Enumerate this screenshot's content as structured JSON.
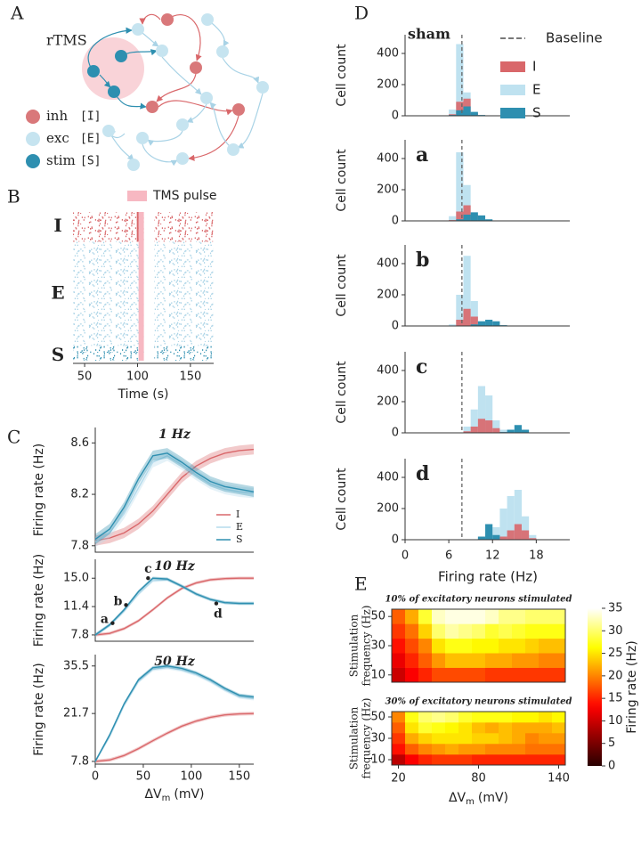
{
  "panel_labels": [
    "A",
    "B",
    "C",
    "D",
    "E"
  ],
  "network": {
    "title": "rTMS",
    "legend": [
      {
        "label": "inh",
        "code": "[I]",
        "color": "#d9787a"
      },
      {
        "label": "exc",
        "code": "[E]",
        "color": "#c6e4f0"
      },
      {
        "label": "stim",
        "code": "[S]",
        "color": "#2e8fb0"
      }
    ]
  },
  "chart_data": [
    {
      "type": "raster",
      "rows": [
        "I",
        "E",
        "S"
      ],
      "colors": [
        "#d9676a",
        "#a9d3e6",
        "#2e8fb0"
      ],
      "xlim": [
        39,
        172
      ],
      "xticks": [
        50,
        100,
        150
      ],
      "x_label": "Time (s)",
      "pulse": [
        101,
        106
      ],
      "pulse_label": "TMS pulse",
      "pulse_color": "#f7b8c2",
      "gap": [
        106,
        116
      ]
    },
    {
      "type": "line",
      "title": "1 Hz",
      "y_label": "Firing rate (Hz)",
      "legend": "lower right",
      "x": [
        0,
        15,
        30,
        45,
        60,
        75,
        90,
        105,
        120,
        135,
        150,
        165
      ],
      "xlim": [
        0,
        165
      ],
      "ylim": [
        7.75,
        8.72
      ],
      "yticks": [
        7.8,
        8.2,
        8.6
      ],
      "series": [
        {
          "name": "I",
          "color": "#d9676a",
          "error": 0.04,
          "values": [
            7.84,
            7.86,
            7.9,
            7.97,
            8.07,
            8.2,
            8.33,
            8.42,
            8.48,
            8.52,
            8.54,
            8.55
          ]
        },
        {
          "name": "E",
          "color": "#b5dbec",
          "error": 0.04,
          "values": [
            7.83,
            7.9,
            8.05,
            8.25,
            8.45,
            8.5,
            8.43,
            8.35,
            8.28,
            8.24,
            8.22,
            8.21
          ]
        },
        {
          "name": "S",
          "color": "#2e8fb0",
          "error": 0.04,
          "values": [
            7.85,
            7.93,
            8.1,
            8.32,
            8.5,
            8.52,
            8.45,
            8.37,
            8.3,
            8.26,
            8.24,
            8.22
          ]
        }
      ]
    },
    {
      "type": "line",
      "title": "10 Hz",
      "y_label": "Firing rate (Hz)",
      "x": [
        0,
        15,
        30,
        45,
        60,
        75,
        90,
        105,
        120,
        135,
        150,
        165
      ],
      "xlim": [
        0,
        165
      ],
      "ylim": [
        7.0,
        17.4
      ],
      "yticks": [
        7.8,
        11.4,
        {
          "value": 15,
          "label": "15.0"
        }
      ],
      "series": [
        {
          "name": "I",
          "color": "#d9676a",
          "error": 0.2,
          "values": [
            7.8,
            8.0,
            8.6,
            9.6,
            11.0,
            12.5,
            13.7,
            14.4,
            14.8,
            14.95,
            15.0,
            15.0
          ]
        },
        {
          "name": "E",
          "color": "#b5dbec",
          "error": 0.2,
          "values": [
            7.8,
            9.0,
            10.8,
            13.0,
            14.7,
            14.8,
            14.0,
            13.0,
            12.3,
            11.9,
            11.8,
            11.8
          ]
        },
        {
          "name": "S",
          "color": "#2e8fb0",
          "error": 0.2,
          "values": [
            7.8,
            9.1,
            11.0,
            13.3,
            15.0,
            14.9,
            14.0,
            13.0,
            12.3,
            11.9,
            11.8,
            11.8
          ]
        }
      ],
      "points": [
        {
          "label": "a",
          "x": 18,
          "y": 9.3
        },
        {
          "label": "b",
          "x": 32,
          "y": 11.6
        },
        {
          "label": "c",
          "x": 55,
          "y": 15.0
        },
        {
          "label": "d",
          "x": 126,
          "y": 11.8
        }
      ]
    },
    {
      "type": "line",
      "title": "50 Hz",
      "y_label": "Firing rate (Hz)",
      "x": [
        0,
        15,
        30,
        45,
        60,
        75,
        90,
        105,
        120,
        135,
        150,
        165
      ],
      "xlim": [
        0,
        165
      ],
      "xticks": [
        0,
        50,
        100,
        150
      ],
      "x_label": {
        "main": "ΔV",
        "sub": "m",
        "unit": "(mV)"
      },
      "ylim": [
        7,
        38.8
      ],
      "yticks": [
        7.8,
        21.7,
        35.5
      ],
      "series": [
        {
          "name": "I",
          "color": "#d9676a",
          "error": 0.5,
          "values": [
            7.8,
            8.2,
            9.5,
            11.5,
            13.8,
            16.0,
            18.0,
            19.5,
            20.6,
            21.3,
            21.6,
            21.7
          ]
        },
        {
          "name": "E",
          "color": "#b5dbec",
          "error": 0.5,
          "values": [
            7.8,
            15,
            24,
            31,
            34.5,
            35.0,
            34.3,
            33.0,
            31.0,
            28.5,
            26.5,
            26.0
          ]
        },
        {
          "name": "S",
          "color": "#2e8fb0",
          "error": 0.5,
          "values": [
            7.8,
            15.5,
            24.5,
            31.5,
            35.0,
            35.5,
            34.8,
            33.5,
            31.5,
            29,
            27,
            26.5
          ]
        }
      ]
    },
    {
      "type": "histogram",
      "label": "sham",
      "y_label": "Cell count",
      "legend": "upper right",
      "baseline_label": "Baseline",
      "baseline": 7.8,
      "xlim": [
        0,
        22.6
      ],
      "ylim": [
        0,
        520
      ],
      "yticks": [
        0,
        200,
        400
      ],
      "bins": [
        3,
        4,
        5,
        6,
        7,
        8,
        9,
        10,
        11,
        12,
        13,
        14,
        15,
        16,
        17,
        18,
        19
      ],
      "series": [
        {
          "name": "I",
          "color": "#d9676a",
          "values": [
            0,
            0,
            0,
            10,
            90,
            110,
            20,
            0,
            0,
            0,
            0,
            0,
            0,
            0,
            0,
            0
          ]
        },
        {
          "name": "E",
          "color": "#bfe2f0",
          "values": [
            0,
            0,
            0,
            40,
            460,
            150,
            10,
            0,
            0,
            0,
            0,
            0,
            0,
            0,
            0,
            0
          ]
        },
        {
          "name": "S",
          "color": "#2e8fb0",
          "values": [
            0,
            0,
            0,
            5,
            35,
            60,
            25,
            5,
            0,
            0,
            0,
            0,
            0,
            0,
            0,
            0
          ]
        }
      ]
    },
    {
      "type": "histogram",
      "label": "a",
      "y_label": "Cell count",
      "baseline": 7.8,
      "xlim": [
        0,
        22.6
      ],
      "ylim": [
        0,
        520
      ],
      "yticks": [
        0,
        200,
        400
      ],
      "bins": [
        3,
        4,
        5,
        6,
        7,
        8,
        9,
        10,
        11,
        12,
        13,
        14,
        15,
        16,
        17,
        18,
        19
      ],
      "series": [
        {
          "name": "I",
          "color": "#d9676a",
          "values": [
            0,
            0,
            0,
            5,
            60,
            100,
            40,
            5,
            0,
            0,
            0,
            0,
            0,
            0,
            0,
            0
          ]
        },
        {
          "name": "E",
          "color": "#bfe2f0",
          "values": [
            0,
            0,
            0,
            30,
            440,
            230,
            40,
            5,
            0,
            0,
            0,
            0,
            0,
            0,
            0,
            0
          ]
        },
        {
          "name": "S",
          "color": "#2e8fb0",
          "values": [
            0,
            0,
            0,
            0,
            10,
            40,
            55,
            35,
            10,
            0,
            0,
            0,
            0,
            0,
            0,
            0
          ]
        }
      ]
    },
    {
      "type": "histogram",
      "label": "b",
      "y_label": "Cell count",
      "baseline": 7.8,
      "xlim": [
        0,
        22.6
      ],
      "ylim": [
        0,
        520
      ],
      "yticks": [
        0,
        200,
        400
      ],
      "bins": [
        3,
        4,
        5,
        6,
        7,
        8,
        9,
        10,
        11,
        12,
        13,
        14,
        15,
        16,
        17,
        18,
        19
      ],
      "series": [
        {
          "name": "I",
          "color": "#d9676a",
          "values": [
            0,
            0,
            0,
            0,
            40,
            110,
            60,
            10,
            0,
            0,
            0,
            0,
            0,
            0,
            0,
            0
          ]
        },
        {
          "name": "E",
          "color": "#bfe2f0",
          "values": [
            0,
            0,
            0,
            10,
            200,
            450,
            160,
            30,
            5,
            0,
            0,
            0,
            0,
            0,
            0,
            0
          ]
        },
        {
          "name": "S",
          "color": "#2e8fb0",
          "values": [
            0,
            0,
            0,
            0,
            0,
            0,
            10,
            30,
            40,
            30,
            5,
            0,
            0,
            0,
            0,
            0
          ]
        }
      ]
    },
    {
      "type": "histogram",
      "label": "c",
      "y_label": "Cell count",
      "baseline": 7.8,
      "xlim": [
        0,
        22.6
      ],
      "ylim": [
        0,
        520
      ],
      "yticks": [
        0,
        200,
        400
      ],
      "bins": [
        3,
        4,
        5,
        6,
        7,
        8,
        9,
        10,
        11,
        12,
        13,
        14,
        15,
        16,
        17,
        18,
        19
      ],
      "series": [
        {
          "name": "I",
          "color": "#d9676a",
          "values": [
            0,
            0,
            0,
            0,
            0,
            10,
            40,
            90,
            80,
            30,
            5,
            0,
            0,
            0,
            0,
            0
          ]
        },
        {
          "name": "E",
          "color": "#bfe2f0",
          "values": [
            0,
            0,
            0,
            0,
            0,
            40,
            150,
            300,
            240,
            80,
            20,
            10,
            5,
            0,
            0,
            0
          ]
        },
        {
          "name": "S",
          "color": "#2e8fb0",
          "values": [
            0,
            0,
            0,
            0,
            0,
            0,
            0,
            0,
            0,
            0,
            5,
            20,
            50,
            20,
            0,
            0
          ]
        }
      ]
    },
    {
      "type": "histogram",
      "label": "d",
      "y_label": "Cell count",
      "x_label": "Firing rate (Hz)",
      "xticks": [
        0,
        6,
        12,
        18
      ],
      "baseline": 7.8,
      "xlim": [
        0,
        22.6
      ],
      "ylim": [
        0,
        520
      ],
      "yticks": [
        0,
        200,
        400
      ],
      "bins": [
        3,
        4,
        5,
        6,
        7,
        8,
        9,
        10,
        11,
        12,
        13,
        14,
        15,
        16,
        17,
        18,
        19
      ],
      "series": [
        {
          "name": "I",
          "color": "#d9676a",
          "values": [
            0,
            0,
            0,
            0,
            0,
            0,
            0,
            0,
            0,
            0,
            20,
            60,
            100,
            60,
            10,
            0
          ]
        },
        {
          "name": "E",
          "color": "#bfe2f0",
          "values": [
            0,
            0,
            0,
            0,
            0,
            0,
            0,
            10,
            40,
            80,
            200,
            280,
            320,
            150,
            30,
            0
          ]
        },
        {
          "name": "S",
          "color": "#2e8fb0",
          "values": [
            0,
            0,
            0,
            0,
            0,
            0,
            0,
            20,
            100,
            30,
            0,
            0,
            0,
            0,
            0,
            0
          ]
        }
      ]
    },
    {
      "type": "heatmap",
      "title": "10% of excitatory neurons stimulated",
      "y_label": [
        "Stimulation",
        "frequency (Hz)"
      ],
      "x": [
        20,
        30,
        40,
        50,
        60,
        70,
        80,
        90,
        100,
        110,
        120,
        130,
        140
      ],
      "y": [
        10,
        20,
        30,
        40,
        50
      ],
      "yticks": [
        10,
        30,
        50
      ],
      "zlim": [
        0,
        35
      ],
      "colormap": "hot",
      "values": [
        [
          10,
          13,
          15,
          17,
          17,
          17,
          17,
          16,
          16,
          16,
          16,
          16,
          16
        ],
        [
          12,
          15,
          18,
          21,
          23,
          23,
          23,
          22,
          22,
          21,
          21,
          20,
          20
        ],
        [
          14,
          17,
          20,
          25,
          27,
          27,
          26,
          26,
          25,
          25,
          24,
          23,
          23
        ],
        [
          16,
          19,
          24,
          30,
          32,
          31,
          30,
          28,
          29,
          28,
          27,
          27,
          27
        ],
        [
          18,
          22,
          28,
          33,
          34,
          34,
          34,
          33,
          31,
          31,
          30,
          30,
          30
        ]
      ]
    },
    {
      "type": "heatmap",
      "title": "30% of excitatory neurons stimulated",
      "y_label": [
        "Stimulation",
        "frequency (Hz)"
      ],
      "x": [
        20,
        30,
        40,
        50,
        60,
        70,
        80,
        90,
        100,
        110,
        120,
        130,
        140
      ],
      "y": [
        10,
        20,
        30,
        40,
        50
      ],
      "xticks": [
        20,
        80,
        140
      ],
      "yticks": [
        10,
        30,
        50
      ],
      "zlim": [
        0,
        35
      ],
      "colormap": "hot",
      "x_label": {
        "main": "ΔV",
        "sub": "m",
        "unit": "(mV)"
      },
      "values": [
        [
          9,
          13,
          15,
          16,
          16,
          16,
          15,
          15,
          15,
          15,
          15,
          15,
          15
        ],
        [
          14,
          18,
          20,
          21,
          22,
          21,
          21,
          20,
          20,
          20,
          19,
          19,
          19
        ],
        [
          16,
          22,
          24,
          25,
          25,
          25,
          24,
          24,
          23,
          22,
          20,
          21,
          21
        ],
        [
          18,
          25,
          28,
          27,
          26,
          25,
          23,
          22,
          23,
          22,
          22,
          22,
          23
        ],
        [
          20,
          27,
          30,
          31,
          30,
          28,
          27,
          27,
          27,
          26,
          26,
          25,
          26
        ]
      ],
      "colorbar": {
        "zlim": [
          0,
          35
        ],
        "ticks": [
          0,
          5,
          10,
          15,
          20,
          25,
          30,
          35
        ],
        "label": "Firing rate (Hz)"
      }
    }
  ]
}
